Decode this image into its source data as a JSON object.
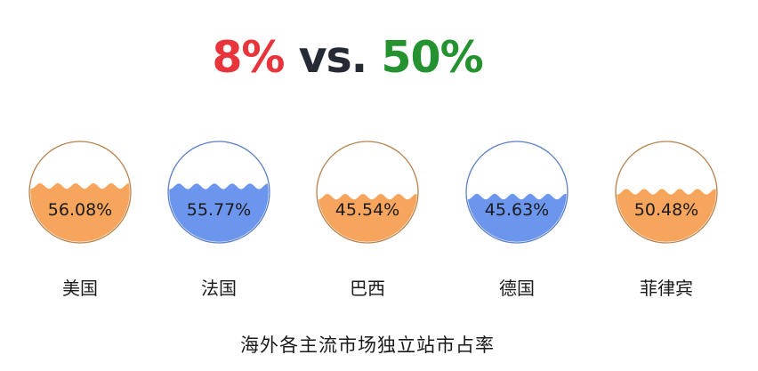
{
  "headline": {
    "left_value": "8%",
    "versus": "vs.",
    "right_value": "50%"
  },
  "chart_data": {
    "type": "liquid-gauge",
    "title": "海外各主流市场独立站市占率",
    "series": [
      {
        "category": "美国",
        "value": 56.08,
        "label": "56.08%",
        "fill": "#f7a55c",
        "border": "#b5824e"
      },
      {
        "category": "法国",
        "value": 55.77,
        "label": "55.77%",
        "fill": "#6c96ee",
        "border": "#5b7ec6"
      },
      {
        "category": "巴西",
        "value": 45.54,
        "label": "45.54%",
        "fill": "#f7a55c",
        "border": "#b5824e"
      },
      {
        "category": "德国",
        "value": 45.63,
        "label": "45.63%",
        "fill": "#6c96ee",
        "border": "#5b7ec6"
      },
      {
        "category": "菲律宾",
        "value": 50.48,
        "label": "50.48%",
        "fill": "#f7a55c",
        "border": "#b5824e"
      }
    ]
  },
  "colors": {
    "headline_low": "#e8343b",
    "headline_mid": "#262a35",
    "headline_high": "#23922f",
    "text": "#1a1a1a"
  }
}
